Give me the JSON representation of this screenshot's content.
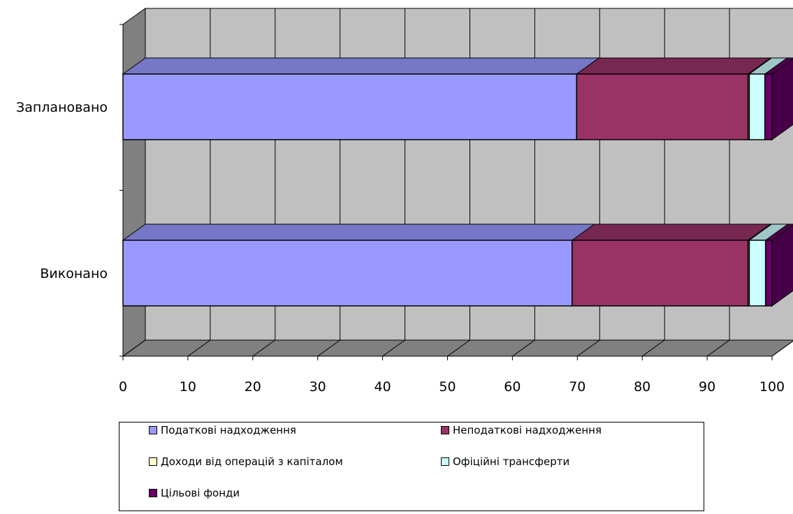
{
  "chart_data": {
    "type": "bar",
    "orientation": "horizontal",
    "stacked": "percent",
    "three_d": true,
    "categories": [
      "Виконано",
      "Заплановано"
    ],
    "series": [
      {
        "name": "Податкові надходження",
        "color": "#9999ff",
        "values": [
          69.2,
          69.9
        ]
      },
      {
        "name": "Неподаткові надходження",
        "color": "#993366",
        "values": [
          27.1,
          26.4
        ]
      },
      {
        "name": "Доходи від операцій з капіталом",
        "color": "#ffffcc",
        "values": [
          0.2,
          0.2
        ]
      },
      {
        "name": "Офіційні трансферти",
        "color": "#ccffff",
        "values": [
          2.5,
          2.4
        ]
      },
      {
        "name": "Цільові фонди",
        "color": "#660066",
        "values": [
          1.0,
          1.1
        ]
      }
    ],
    "x_ticks": [
      "0",
      "10",
      "20",
      "30",
      "40",
      "50",
      "60",
      "70",
      "80",
      "90",
      "100"
    ],
    "xlim": [
      0,
      100
    ],
    "grid": true,
    "legend_position": "bottom"
  }
}
